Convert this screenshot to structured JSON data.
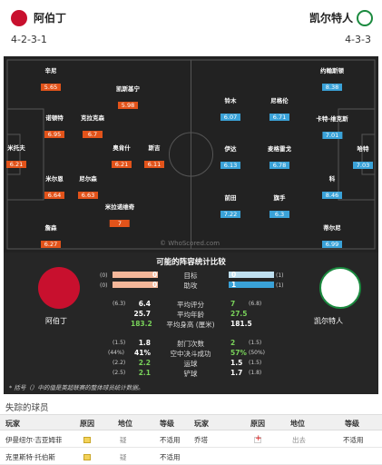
{
  "home": {
    "name": "阿伯丁",
    "formation": "4-2-3-1",
    "color": "#e2531a"
  },
  "away": {
    "name": "凯尔特人",
    "formation": "4-3-3",
    "color": "#3aa2d8"
  },
  "home_players": [
    {
      "name": "辛尼",
      "rating": "5.65"
    },
    {
      "name": "凯斯基宁",
      "rating": "5.98"
    },
    {
      "name": "诺顿特",
      "rating": "6.95"
    },
    {
      "name": "克拉克森",
      "rating": "6.7"
    },
    {
      "name": "米托夫",
      "rating": "6.21"
    },
    {
      "name": "奥肯什",
      "rating": "6.21"
    },
    {
      "name": "斯吉",
      "rating": "6.11"
    },
    {
      "name": "米尔恩",
      "rating": "6.64"
    },
    {
      "name": "尼尔森",
      "rating": "6.63"
    },
    {
      "name": "米拉诺维奇",
      "rating": "7"
    },
    {
      "name": "詹森",
      "rating": "6.27"
    }
  ],
  "away_players": [
    {
      "name": "约翰斯顿",
      "rating": "8.38"
    },
    {
      "name": "铃木",
      "rating": "6.07"
    },
    {
      "name": "尼格伦",
      "rating": "6.71"
    },
    {
      "name": "卡特-维克斯",
      "rating": "7.01"
    },
    {
      "name": "伊达",
      "rating": "6.13"
    },
    {
      "name": "麦格雷戈",
      "rating": "6.78"
    },
    {
      "name": "哈特",
      "rating": "7.03"
    },
    {
      "name": "科",
      "rating": "8.46"
    },
    {
      "name": "前田",
      "rating": "7.22"
    },
    {
      "name": "旗手",
      "rating": "6.3"
    },
    {
      "name": "蒂尔尼",
      "rating": "6.99"
    }
  ],
  "watermark": "© WhoScored.com",
  "comparison": {
    "title": "可能的阵容统计比较",
    "team_home": "阿伯丁",
    "team_away": "凯尔特人",
    "goal_bar": {
      "label": "目标",
      "home": "0",
      "home_count": "(0)",
      "away": "0",
      "away_count": "(1)"
    },
    "assist_bar": {
      "label": "助攻",
      "home": "0",
      "home_count": "(0)",
      "away": "1",
      "away_count": "(1)"
    },
    "stats": [
      {
        "label": "平均评分",
        "home_pre": "(6.3)",
        "home": "6.4",
        "away": "7",
        "away_post": "(6.8)"
      },
      {
        "label": "平均年龄",
        "home_pre": "",
        "home": "25.7",
        "away": "27.5",
        "away_post": ""
      },
      {
        "label": "平均身高 (厘米)",
        "home_pre": "",
        "home": "183.2",
        "away": "181.5",
        "away_post": ""
      },
      {
        "label": "射门次数",
        "home_pre": "(1.5)",
        "home": "1.8",
        "away": "2",
        "away_post": "(1.5)"
      },
      {
        "label": "空中决斗成功",
        "home_pre": "(44%)",
        "home": "41%",
        "away": "57%",
        "away_post": "(50%)"
      },
      {
        "label": "运球",
        "home_pre": "(2.2)",
        "home": "2.2",
        "away": "1.5",
        "away_post": "(1.5)"
      },
      {
        "label": "铲球",
        "home_pre": "(2.5)",
        "home": "2.1",
        "away": "1.7",
        "away_post": "(1.8)"
      }
    ],
    "note": "* 括号（）中的值是英超联赛的整体球员统计数据。"
  },
  "missing": {
    "title": "失踪的球员",
    "headers": [
      "玩家",
      "原因",
      "地位",
      "等级",
      "玩家",
      "原因",
      "地位",
      "等级"
    ],
    "rows": [
      {
        "h_player": "伊曼纽尔·吉亚姆菲",
        "h_status": "疑",
        "h_rank": "不适用",
        "a_player": "乔塔",
        "a_status": "出去",
        "a_rank": "不适用"
      },
      {
        "h_player": "克里斯特·托伯斯",
        "h_status": "疑",
        "h_rank": "不适用",
        "a_player": "",
        "a_status": "",
        "a_rank": ""
      }
    ]
  }
}
